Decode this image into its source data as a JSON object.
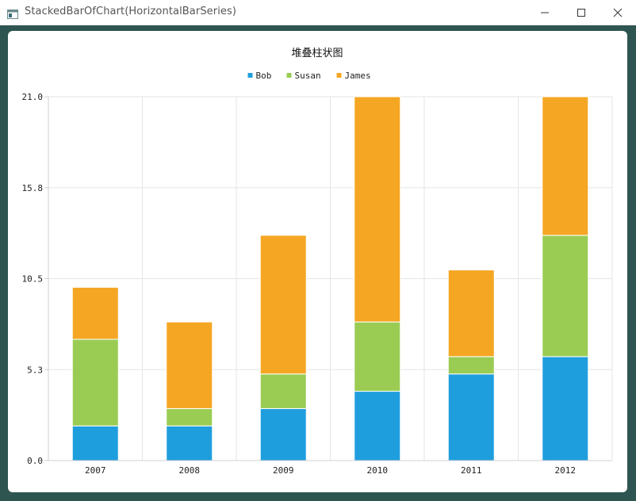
{
  "window": {
    "title": "StackedBarOfChart(HorizontalBarSeries)"
  },
  "colors": {
    "Bob": "#1f9ede",
    "Susan": "#9acc54",
    "James": "#f5a623",
    "grid": "#e6e6e6",
    "axis": "#d0d0d0"
  },
  "chart_data": {
    "type": "bar",
    "stacked": true,
    "title": "堆叠柱状图",
    "categories": [
      "2007",
      "2008",
      "2009",
      "2010",
      "2011",
      "2012"
    ],
    "series": [
      {
        "name": "Bob",
        "values": [
          2,
          2,
          3,
          4,
          5,
          6
        ]
      },
      {
        "name": "Susan",
        "values": [
          5,
          1,
          2,
          4,
          1,
          7
        ]
      },
      {
        "name": "James",
        "values": [
          3,
          5,
          8,
          13,
          5,
          8
        ]
      }
    ],
    "yticks": [
      "0.0",
      "5.3",
      "10.5",
      "15.8",
      "21.0"
    ],
    "ylim": [
      0,
      21
    ],
    "grid": true,
    "legend_position": "top-center"
  }
}
